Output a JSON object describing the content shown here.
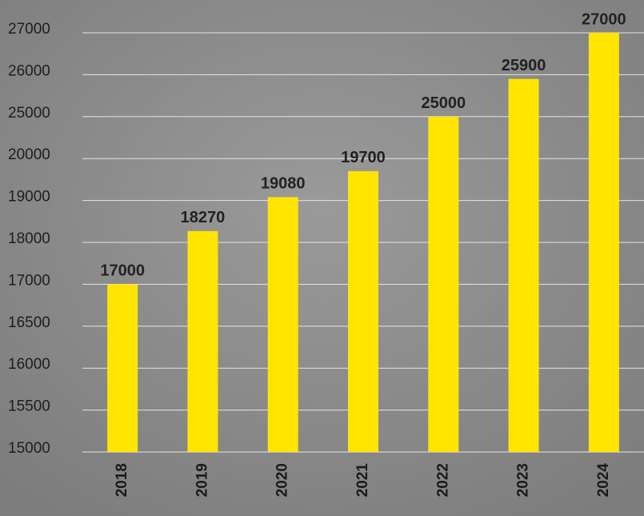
{
  "chart_data": {
    "type": "bar",
    "categories": [
      "2018",
      "2019",
      "2020",
      "2021",
      "2022",
      "2023",
      "2024"
    ],
    "values": [
      17000,
      18270,
      19080,
      19700,
      25000,
      25900,
      27000
    ],
    "color": "#ffe500",
    "ylim": [
      15000,
      27000
    ],
    "yticks": [
      15000,
      15500,
      16000,
      16500,
      17000,
      18000,
      19000,
      20000,
      25000,
      26000,
      27000
    ],
    "grid": true
  }
}
